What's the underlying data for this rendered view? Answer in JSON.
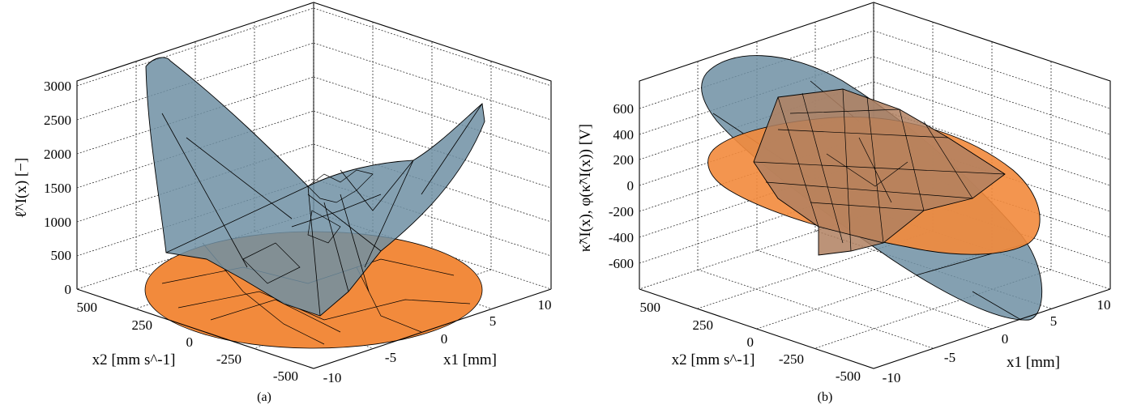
{
  "chart_data": [
    {
      "type": "surface3d",
      "panel_label": "(a)",
      "zlabel": "ℓ̃^I(x) [−]",
      "xlabel": "x1 [mm]",
      "ylabel": "x2 [mm s^-1]",
      "z_ticks": [
        "0",
        "500",
        "1000",
        "1500",
        "2000",
        "2500",
        "3000"
      ],
      "x_ticks": [
        "-10",
        "-5",
        "0",
        "5",
        "10"
      ],
      "y_ticks": [
        "500",
        "250",
        "0",
        "-250",
        "-500"
      ],
      "zlim": [
        0,
        3000
      ],
      "xlim": [
        -10,
        10
      ],
      "ylim": [
        -500,
        500
      ],
      "surfaces": [
        {
          "role": "gray-blue upper surface",
          "color": "#6f8fa3"
        },
        {
          "role": "orange base surface",
          "color": "#f28a3c"
        }
      ]
    },
    {
      "type": "surface3d",
      "panel_label": "(b)",
      "zlabel": "κ̃^I(x), φ(κ̃^I(x)) [V]",
      "xlabel": "x1 [mm]",
      "ylabel": "x2 [mm s^-1]",
      "z_ticks": [
        "600",
        "400",
        "200",
        "0",
        "-200",
        "-400",
        "-600"
      ],
      "x_ticks": [
        "-10",
        "-5",
        "0",
        "5",
        "10"
      ],
      "y_ticks": [
        "500",
        "250",
        "0",
        "-250",
        "-500"
      ],
      "zlim": [
        -700,
        700
      ],
      "xlim": [
        -10,
        10
      ],
      "ylim": [
        -500,
        500
      ],
      "surfaces": [
        {
          "role": "gray-blue tilted plane",
          "color": "#6f8fa3"
        },
        {
          "role": "orange tilted plane",
          "color": "#f28a3c"
        },
        {
          "role": "brown mesh",
          "color": "#b08060"
        }
      ]
    }
  ]
}
